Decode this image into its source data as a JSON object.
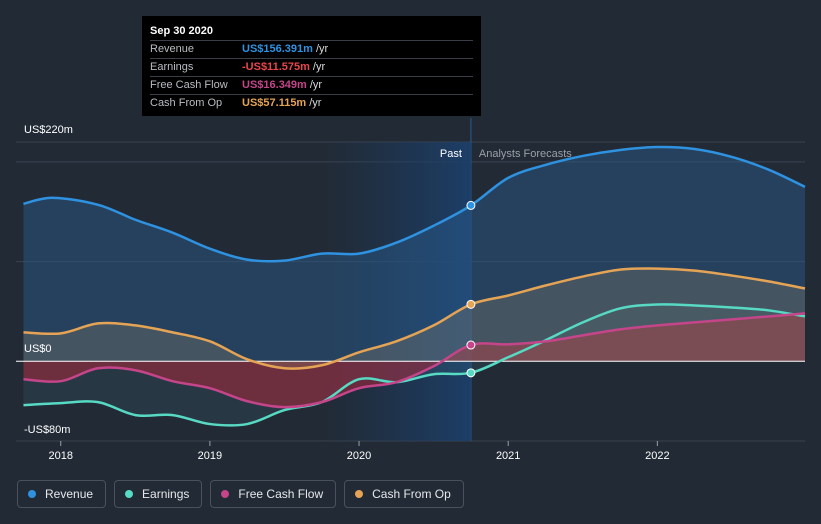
{
  "tooltip": {
    "date": "Sep 30 2020",
    "rows": [
      {
        "label": "Revenue",
        "value": "US$156.391m",
        "unit": "/yr",
        "color": "#2f92e0"
      },
      {
        "label": "Earnings",
        "value": "-US$11.575m",
        "unit": "/yr",
        "color": "#e8474c"
      },
      {
        "label": "Free Cash Flow",
        "value": "US$16.349m",
        "unit": "/yr",
        "color": "#c4458a"
      },
      {
        "label": "Cash From Op",
        "value": "US$57.115m",
        "unit": "/yr",
        "color": "#e5a455"
      }
    ]
  },
  "legend": [
    {
      "label": "Revenue",
      "color": "#2f92e0"
    },
    {
      "label": "Earnings",
      "color": "#57d9c3"
    },
    {
      "label": "Free Cash Flow",
      "color": "#c4458a"
    },
    {
      "label": "Cash From Op",
      "color": "#e5a455"
    }
  ],
  "chart_data": {
    "type": "area",
    "title": "",
    "xlabel": "",
    "ylabel": "",
    "ylim": [
      -80,
      220
    ],
    "xlim": [
      2017.7,
      2022.99
    ],
    "y_axis_labels": [
      {
        "value": 220,
        "text": "US$220m"
      },
      {
        "value": 0,
        "text": "US$0"
      },
      {
        "value": -80,
        "text": "-US$80m"
      }
    ],
    "x_ticks": [
      {
        "value": 2018,
        "text": "2018"
      },
      {
        "value": 2019,
        "text": "2019"
      },
      {
        "value": 2020,
        "text": "2020"
      },
      {
        "value": 2021,
        "text": "2021"
      },
      {
        "value": 2022,
        "text": "2022"
      }
    ],
    "divider": {
      "x": 2020.75,
      "past_label": "Past",
      "forecast_label": "Analysts Forecasts",
      "shade_start": 2019.75
    },
    "series": [
      {
        "name": "Revenue",
        "color": "#2f92e0",
        "marker_x": 2020.75,
        "points": [
          [
            2017.75,
            158
          ],
          [
            2017.95,
            164
          ],
          [
            2018.25,
            157
          ],
          [
            2018.5,
            142
          ],
          [
            2018.75,
            129
          ],
          [
            2019.0,
            113
          ],
          [
            2019.25,
            102
          ],
          [
            2019.5,
            101
          ],
          [
            2019.75,
            108
          ],
          [
            2020.0,
            108
          ],
          [
            2020.25,
            119
          ],
          [
            2020.5,
            136
          ],
          [
            2020.75,
            156.4
          ],
          [
            2021.0,
            184
          ],
          [
            2021.25,
            197
          ],
          [
            2021.5,
            206
          ],
          [
            2021.75,
            212
          ],
          [
            2022.0,
            215
          ],
          [
            2022.25,
            213
          ],
          [
            2022.5,
            205
          ],
          [
            2022.75,
            192
          ],
          [
            2022.99,
            175
          ]
        ]
      },
      {
        "name": "Earnings",
        "color": "#57d9c3",
        "marker_x": 2020.75,
        "points": [
          [
            2017.75,
            -44
          ],
          [
            2018.0,
            -42
          ],
          [
            2018.25,
            -41
          ],
          [
            2018.5,
            -54
          ],
          [
            2018.75,
            -54
          ],
          [
            2019.0,
            -63
          ],
          [
            2019.25,
            -63
          ],
          [
            2019.5,
            -49
          ],
          [
            2019.75,
            -41
          ],
          [
            2020.0,
            -18
          ],
          [
            2020.25,
            -21
          ],
          [
            2020.5,
            -13
          ],
          [
            2020.75,
            -11.6
          ],
          [
            2021.0,
            4
          ],
          [
            2021.25,
            21
          ],
          [
            2021.5,
            39
          ],
          [
            2021.75,
            53
          ],
          [
            2022.0,
            57
          ],
          [
            2022.25,
            56
          ],
          [
            2022.5,
            54
          ],
          [
            2022.75,
            51
          ],
          [
            2022.99,
            45
          ]
        ]
      },
      {
        "name": "Free Cash Flow",
        "color": "#c4458a",
        "marker_x": 2020.75,
        "points": [
          [
            2017.75,
            -18
          ],
          [
            2018.0,
            -20
          ],
          [
            2018.25,
            -7
          ],
          [
            2018.5,
            -9
          ],
          [
            2018.75,
            -20
          ],
          [
            2019.0,
            -27
          ],
          [
            2019.25,
            -40
          ],
          [
            2019.5,
            -46
          ],
          [
            2019.75,
            -41
          ],
          [
            2020.0,
            -27
          ],
          [
            2020.25,
            -21
          ],
          [
            2020.5,
            -5
          ],
          [
            2020.75,
            16.3
          ],
          [
            2021.0,
            17
          ],
          [
            2021.25,
            20
          ],
          [
            2021.5,
            26
          ],
          [
            2021.75,
            32
          ],
          [
            2022.0,
            36
          ],
          [
            2022.25,
            39
          ],
          [
            2022.5,
            42
          ],
          [
            2022.75,
            45
          ],
          [
            2022.99,
            48
          ]
        ]
      },
      {
        "name": "Cash From Op",
        "color": "#e5a455",
        "marker_x": 2020.75,
        "points": [
          [
            2017.75,
            29
          ],
          [
            2018.0,
            28
          ],
          [
            2018.25,
            38
          ],
          [
            2018.5,
            36
          ],
          [
            2018.75,
            29
          ],
          [
            2019.0,
            20
          ],
          [
            2019.25,
            2
          ],
          [
            2019.5,
            -7
          ],
          [
            2019.75,
            -4
          ],
          [
            2020.0,
            9
          ],
          [
            2020.25,
            20
          ],
          [
            2020.5,
            36
          ],
          [
            2020.75,
            57.1
          ],
          [
            2021.0,
            66
          ],
          [
            2021.25,
            76
          ],
          [
            2021.5,
            85
          ],
          [
            2021.75,
            92
          ],
          [
            2022.0,
            93
          ],
          [
            2022.25,
            91
          ],
          [
            2022.5,
            86
          ],
          [
            2022.75,
            80
          ],
          [
            2022.99,
            73
          ]
        ]
      }
    ]
  }
}
